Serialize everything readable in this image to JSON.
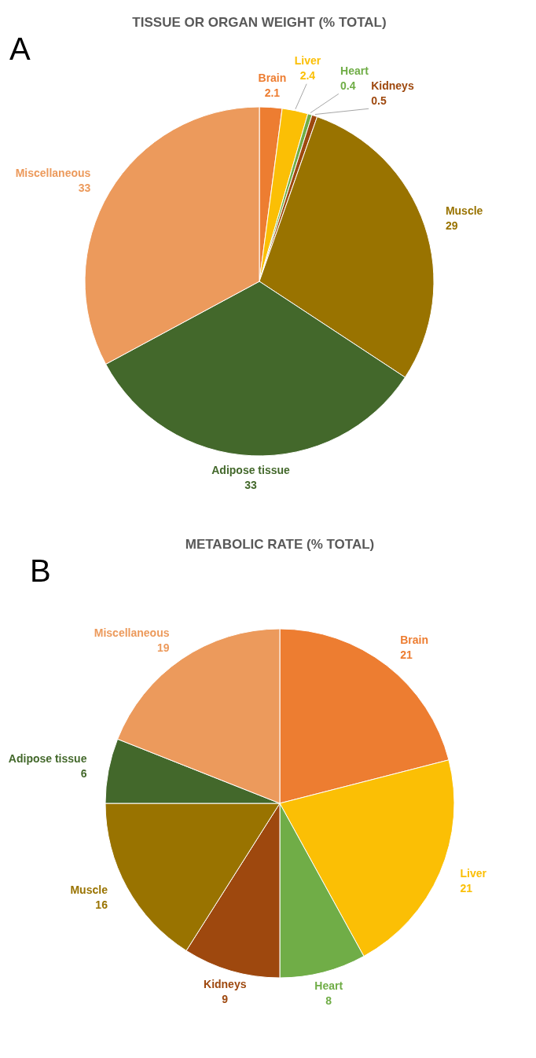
{
  "chart_data": [
    {
      "type": "pie",
      "title": "TISSUE OR ORGAN WEIGHT (% TOTAL)",
      "annotations": [
        "A"
      ],
      "data_labels": true,
      "categories": [
        "Brain",
        "Liver",
        "Heart",
        "Kidneys",
        "Muscle",
        "Adipose tissue",
        "Miscellaneous"
      ],
      "values": [
        2.1,
        2.4,
        0.4,
        0.5,
        29,
        33,
        33
      ],
      "colors": [
        "#ed7d31",
        "#fbbf05",
        "#70ad47",
        "#9e480e",
        "#997300",
        "#43682b",
        "#ec9a5c"
      ]
    },
    {
      "type": "pie",
      "title": "METABOLIC RATE (% TOTAL)",
      "annotations": [
        "B"
      ],
      "data_labels": true,
      "categories": [
        "Brain",
        "Liver",
        "Heart",
        "Kidneys",
        "Muscle",
        "Adipose tissue",
        "Miscellaneous"
      ],
      "values": [
        21,
        21,
        8,
        9,
        16,
        6,
        19
      ],
      "colors": [
        "#ed7d31",
        "#fbbf05",
        "#70ad47",
        "#9e480e",
        "#997300",
        "#43682b",
        "#ec9a5c"
      ]
    }
  ]
}
